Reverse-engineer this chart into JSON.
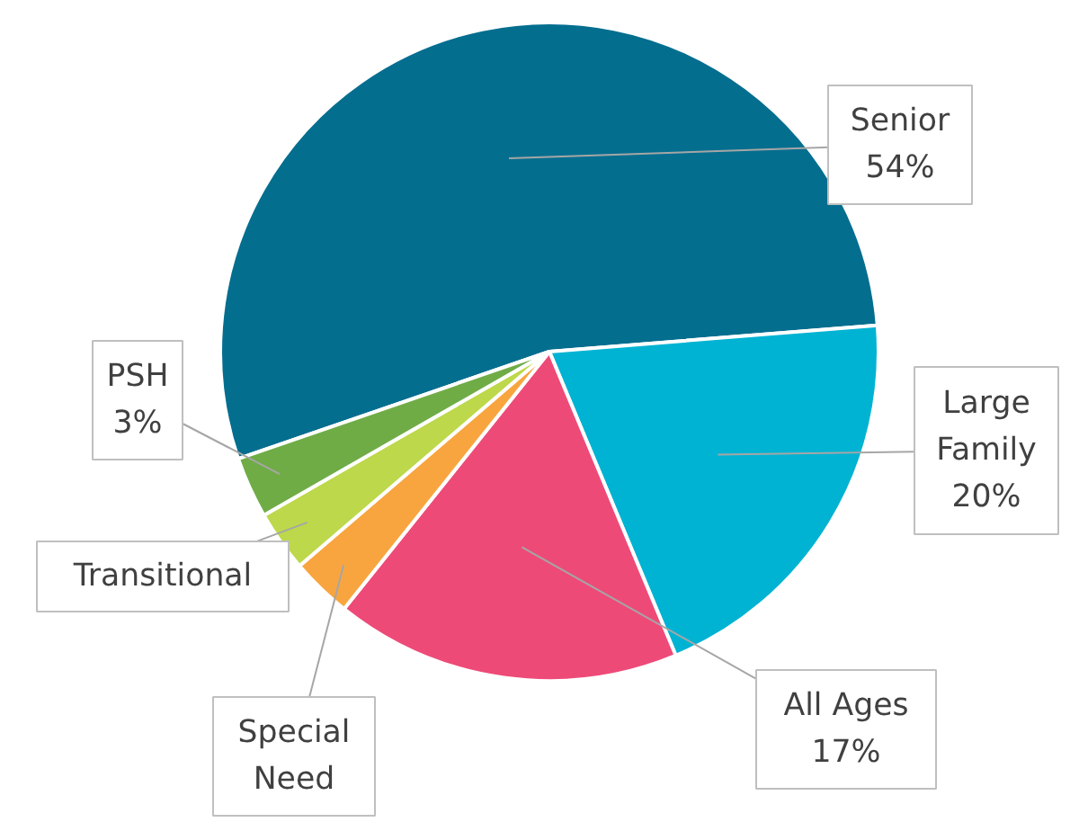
{
  "chart_data": {
    "type": "pie",
    "categories": [
      "Senior",
      "Large Family",
      "All Ages",
      "Special Need",
      "Transitional",
      "PSH"
    ],
    "values": [
      54,
      20,
      17,
      3,
      3,
      3
    ],
    "colors": [
      "#046e8f",
      "#00b3d3",
      "#ee4a78",
      "#f8a53f",
      "#bdd84a",
      "#6fac46"
    ],
    "value_labels": [
      "54%",
      "20%",
      "17%",
      null,
      null,
      "3%"
    ]
  }
}
